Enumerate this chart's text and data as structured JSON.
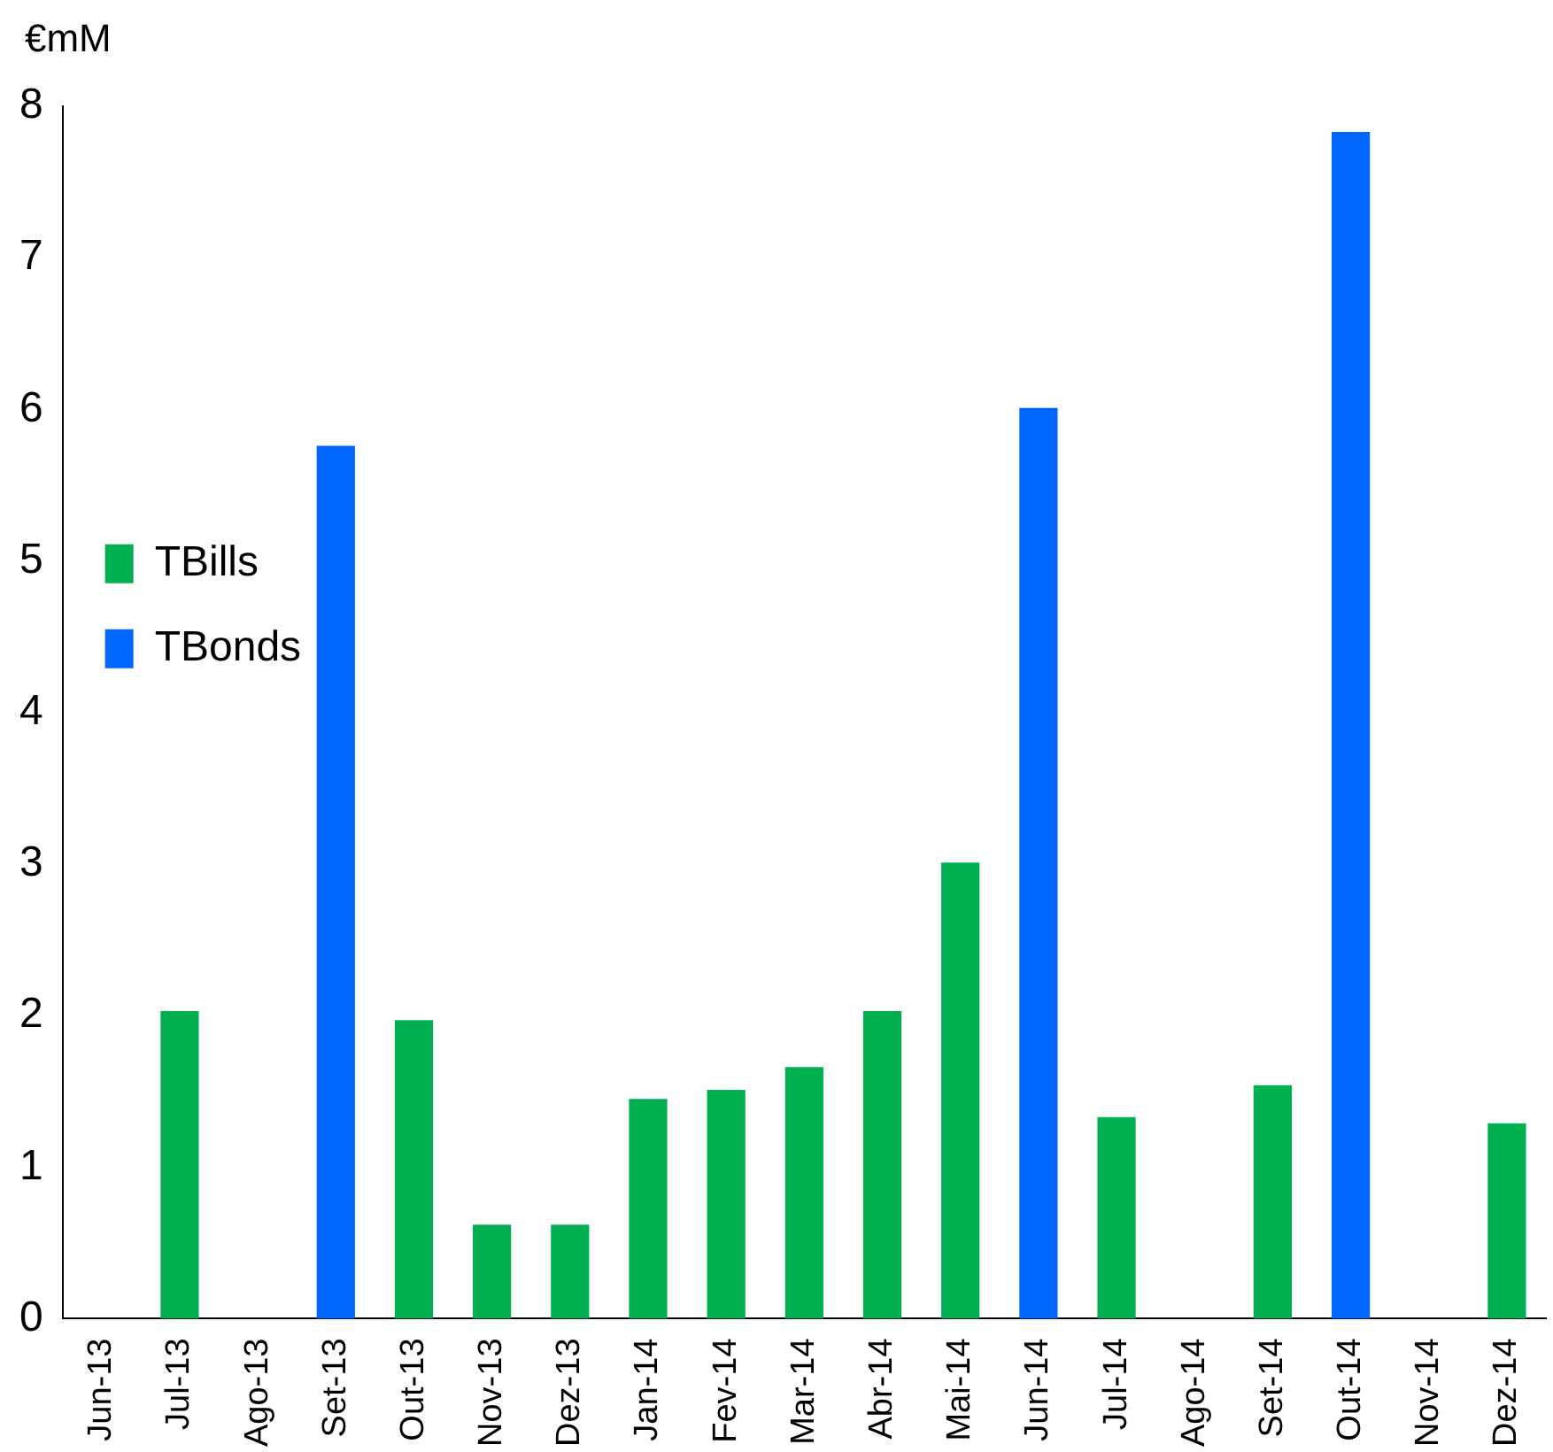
{
  "chart_data": {
    "type": "bar",
    "ylabel": "€mM",
    "categories": [
      "Jun-13",
      "Jul-13",
      "Ago-13",
      "Set-13",
      "Out-13",
      "Nov-13",
      "Dez-13",
      "Jan-14",
      "Fev-14",
      "Mar-14",
      "Abr-14",
      "Mai-14",
      "Jun-14",
      "Jul-14",
      "Ago-14",
      "Set-14",
      "Out-14",
      "Nov-14",
      "Dez-14"
    ],
    "series": [
      {
        "name": "TBills",
        "color": "#00b050",
        "values": [
          null,
          2.03,
          null,
          null,
          1.97,
          0.62,
          0.62,
          1.45,
          1.51,
          1.66,
          2.03,
          3.01,
          null,
          1.33,
          null,
          1.54,
          null,
          null,
          1.29
        ]
      },
      {
        "name": "TBonds",
        "color": "#0066ff",
        "values": [
          null,
          null,
          null,
          5.76,
          null,
          null,
          null,
          null,
          null,
          null,
          null,
          null,
          6.01,
          null,
          null,
          null,
          7.83,
          null,
          null
        ]
      }
    ],
    "ylim": [
      0,
      8
    ],
    "yticks": [
      0,
      1,
      2,
      3,
      4,
      5,
      6,
      7,
      8
    ],
    "grid": false,
    "legend": "top"
  }
}
